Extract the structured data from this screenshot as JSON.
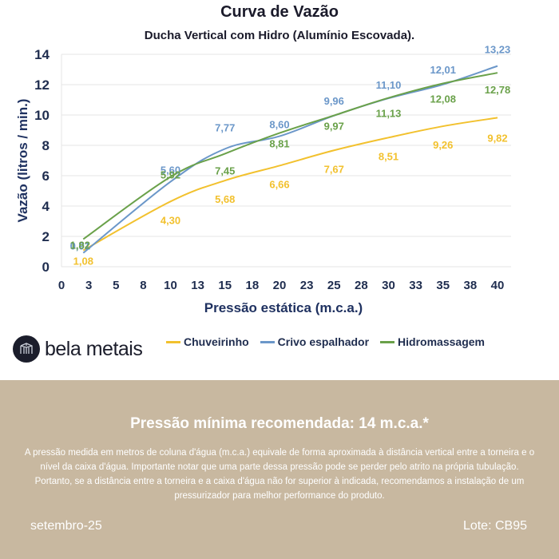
{
  "chart_data": {
    "type": "line",
    "title": "Curva de Vazão",
    "subtitle": "Ducha Vertical com Hidro (Alumínio Escovada).",
    "xlabel": "Pressão estática (m.c.a.)",
    "ylabel": "Vazão (litros / min.)",
    "xlim": [
      0,
      40
    ],
    "ylim": [
      0,
      14
    ],
    "xticks": [
      0,
      2.5,
      5,
      7.5,
      10,
      12.5,
      15,
      17.5,
      20,
      22.5,
      25,
      27.5,
      30,
      32.5,
      35,
      37.5,
      40
    ],
    "xtick_labels": [
      "0",
      "3",
      "5",
      "8",
      "10",
      "13",
      "15",
      "18",
      "20",
      "23",
      "25",
      "28",
      "30",
      "33",
      "35",
      "38",
      "40"
    ],
    "yticks": [
      0,
      2,
      4,
      6,
      8,
      10,
      12,
      14
    ],
    "ytick_labels": [
      "0",
      "2",
      "4",
      "6",
      "8",
      "10",
      "12",
      "14"
    ],
    "grid": true,
    "legend_position": "bottom",
    "x": [
      2,
      10,
      15,
      20,
      25,
      30,
      35,
      40
    ],
    "series": [
      {
        "name": "Chuveirinho",
        "color": "#f2c12e",
        "values": [
          1.08,
          4.3,
          5.68,
          6.66,
          7.67,
          8.51,
          9.26,
          9.82
        ],
        "labels": [
          "1,08",
          "4,30",
          "5,68",
          "6,66",
          "7,67",
          "8,51",
          "9,26",
          "9,82"
        ]
      },
      {
        "name": "Crivo espalhador",
        "color": "#6b97c9",
        "values": [
          0.91,
          5.6,
          7.77,
          8.6,
          9.96,
          11.1,
          12.01,
          13.23
        ],
        "labels": [
          "0,91",
          "5,60",
          "7,77",
          "8,60",
          "9,96",
          "11,10",
          "12,01",
          "13,23"
        ]
      },
      {
        "name": "Hidromassagem",
        "color": "#6aa14a",
        "values": [
          1.82,
          5.92,
          7.45,
          8.81,
          9.97,
          11.13,
          12.08,
          12.78
        ],
        "labels": [
          "1,82",
          "5,92",
          "7,45",
          "8,81",
          "9,97",
          "11,13",
          "12,08",
          "12,78"
        ]
      }
    ]
  },
  "brand": {
    "name": "bela metais",
    "logo_icon": "bela-metais-logo-icon"
  },
  "footer": {
    "title": "Pressão mínima recomendada: 14 m.c.a.*",
    "text": "A pressão medida em metros de coluna d'água (m.c.a.) equivale de forma aproximada à distância vertical entre a torneira e o nível da caixa d'água. Importante notar que uma parte dessa pressão pode se perder pelo atrito na própria tubulação. Portanto, se a distância entre a torneira e a caixa d'água não for superior à indicada, recomendamos a instalação de um pressurizador para melhor performance do produto.",
    "date": "setembro-25",
    "lot": "Lote: CB95",
    "background": "#c8b8a0"
  }
}
